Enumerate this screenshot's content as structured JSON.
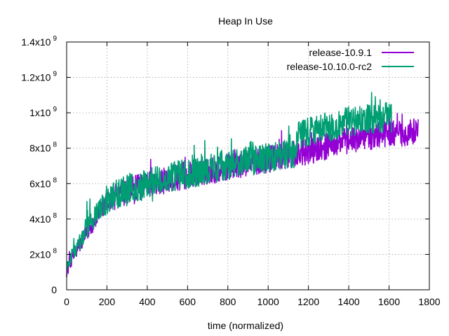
{
  "chart_data": {
    "type": "line",
    "title": "Heap In Use",
    "xlabel": "time (normalized)",
    "ylabel": "",
    "xlim": [
      0,
      1800
    ],
    "ylim": [
      0,
      1400000000
    ],
    "grid": true,
    "legend_position": "top-right",
    "x_ticks": [
      {
        "value": 0,
        "label": "0"
      },
      {
        "value": 200,
        "label": "200"
      },
      {
        "value": 400,
        "label": "400"
      },
      {
        "value": 600,
        "label": "600"
      },
      {
        "value": 800,
        "label": "800"
      },
      {
        "value": 1000,
        "label": "1000"
      },
      {
        "value": 1200,
        "label": "1200"
      },
      {
        "value": 1400,
        "label": "1400"
      },
      {
        "value": 1600,
        "label": "1600"
      },
      {
        "value": 1800,
        "label": "1800"
      }
    ],
    "y_ticks": [
      {
        "value": 0,
        "mantissa": "0",
        "base": "",
        "exp": ""
      },
      {
        "value": 200000000,
        "mantissa": "2x10",
        "base": "",
        "exp": "8"
      },
      {
        "value": 400000000,
        "mantissa": "4x10",
        "base": "",
        "exp": "8"
      },
      {
        "value": 600000000,
        "mantissa": "6x10",
        "base": "",
        "exp": "8"
      },
      {
        "value": 800000000,
        "mantissa": "8x10",
        "base": "",
        "exp": "8"
      },
      {
        "value": 1000000000,
        "mantissa": "1x10",
        "base": "",
        "exp": "9"
      },
      {
        "value": 1200000000,
        "mantissa": "1.2x10",
        "base": "",
        "exp": "9"
      },
      {
        "value": 1400000000,
        "mantissa": "1.4x10",
        "base": "",
        "exp": "9"
      }
    ],
    "series": [
      {
        "name": "release-10.9.1",
        "color": "#9400d3",
        "x": [
          0,
          25,
          50,
          75,
          100,
          125,
          150,
          175,
          200,
          250,
          300,
          350,
          400,
          450,
          500,
          550,
          600,
          650,
          700,
          750,
          800,
          850,
          900,
          950,
          1000,
          1050,
          1100,
          1150,
          1200,
          1250,
          1300,
          1350,
          1400,
          1450,
          1500,
          1550,
          1600,
          1650,
          1700,
          1745
        ],
        "y": [
          100000000,
          170000000,
          220000000,
          270000000,
          320000000,
          370000000,
          410000000,
          450000000,
          490000000,
          530000000,
          560000000,
          575000000,
          590000000,
          605000000,
          620000000,
          635000000,
          645000000,
          660000000,
          670000000,
          680000000,
          695000000,
          705000000,
          715000000,
          725000000,
          735000000,
          750000000,
          760000000,
          770000000,
          780000000,
          800000000,
          815000000,
          830000000,
          845000000,
          855000000,
          865000000,
          875000000,
          880000000,
          885000000,
          890000000,
          900000000
        ]
      },
      {
        "name": "release-10.10.0-rc2",
        "color": "#009e73",
        "x": [
          0,
          25,
          50,
          75,
          100,
          125,
          150,
          175,
          200,
          250,
          300,
          350,
          400,
          450,
          500,
          550,
          600,
          650,
          700,
          750,
          800,
          850,
          900,
          950,
          1000,
          1050,
          1100,
          1130,
          1150,
          1200,
          1250,
          1300,
          1350,
          1400,
          1450,
          1500,
          1550,
          1600,
          1615
        ],
        "y": [
          120000000,
          190000000,
          240000000,
          290000000,
          340000000,
          390000000,
          430000000,
          470000000,
          505000000,
          545000000,
          570000000,
          585000000,
          600000000,
          615000000,
          630000000,
          645000000,
          655000000,
          665000000,
          680000000,
          690000000,
          705000000,
          715000000,
          725000000,
          735000000,
          745000000,
          755000000,
          765000000,
          770000000,
          880000000,
          895000000,
          905000000,
          920000000,
          935000000,
          950000000,
          960000000,
          965000000,
          970000000,
          980000000,
          975000000
        ]
      }
    ]
  }
}
